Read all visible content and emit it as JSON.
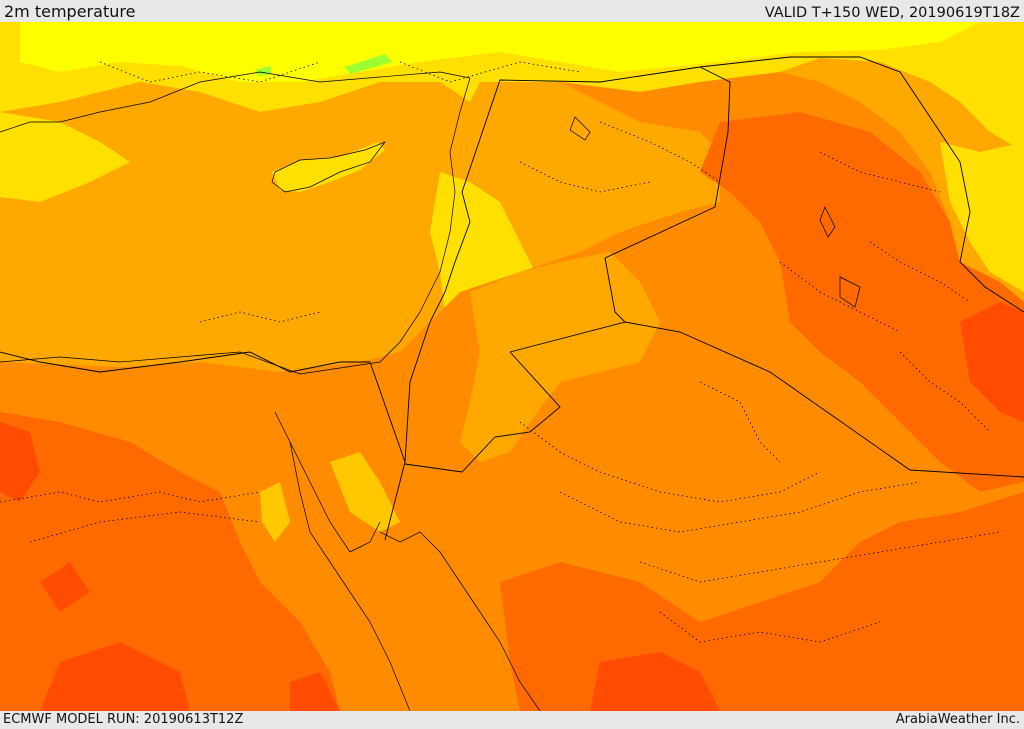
{
  "header": {
    "title": "2m temperature",
    "valid": "VALID T+150 WED, 20190619T18Z"
  },
  "footer": {
    "model_run": "ECMWF MODEL RUN: 20190613T12Z",
    "credit": "ArabiaWeather Inc."
  },
  "colors": {
    "cool_yellow": "#ffff00",
    "light_yellow": "#ffe000",
    "mid_yellow": "#ffc800",
    "orange_light": "#ffa800",
    "orange": "#ff8c00",
    "orange_dark": "#ff6a00",
    "red_orange": "#ff4c00",
    "green_patch": "#9cff33",
    "border_line": "#000000"
  }
}
